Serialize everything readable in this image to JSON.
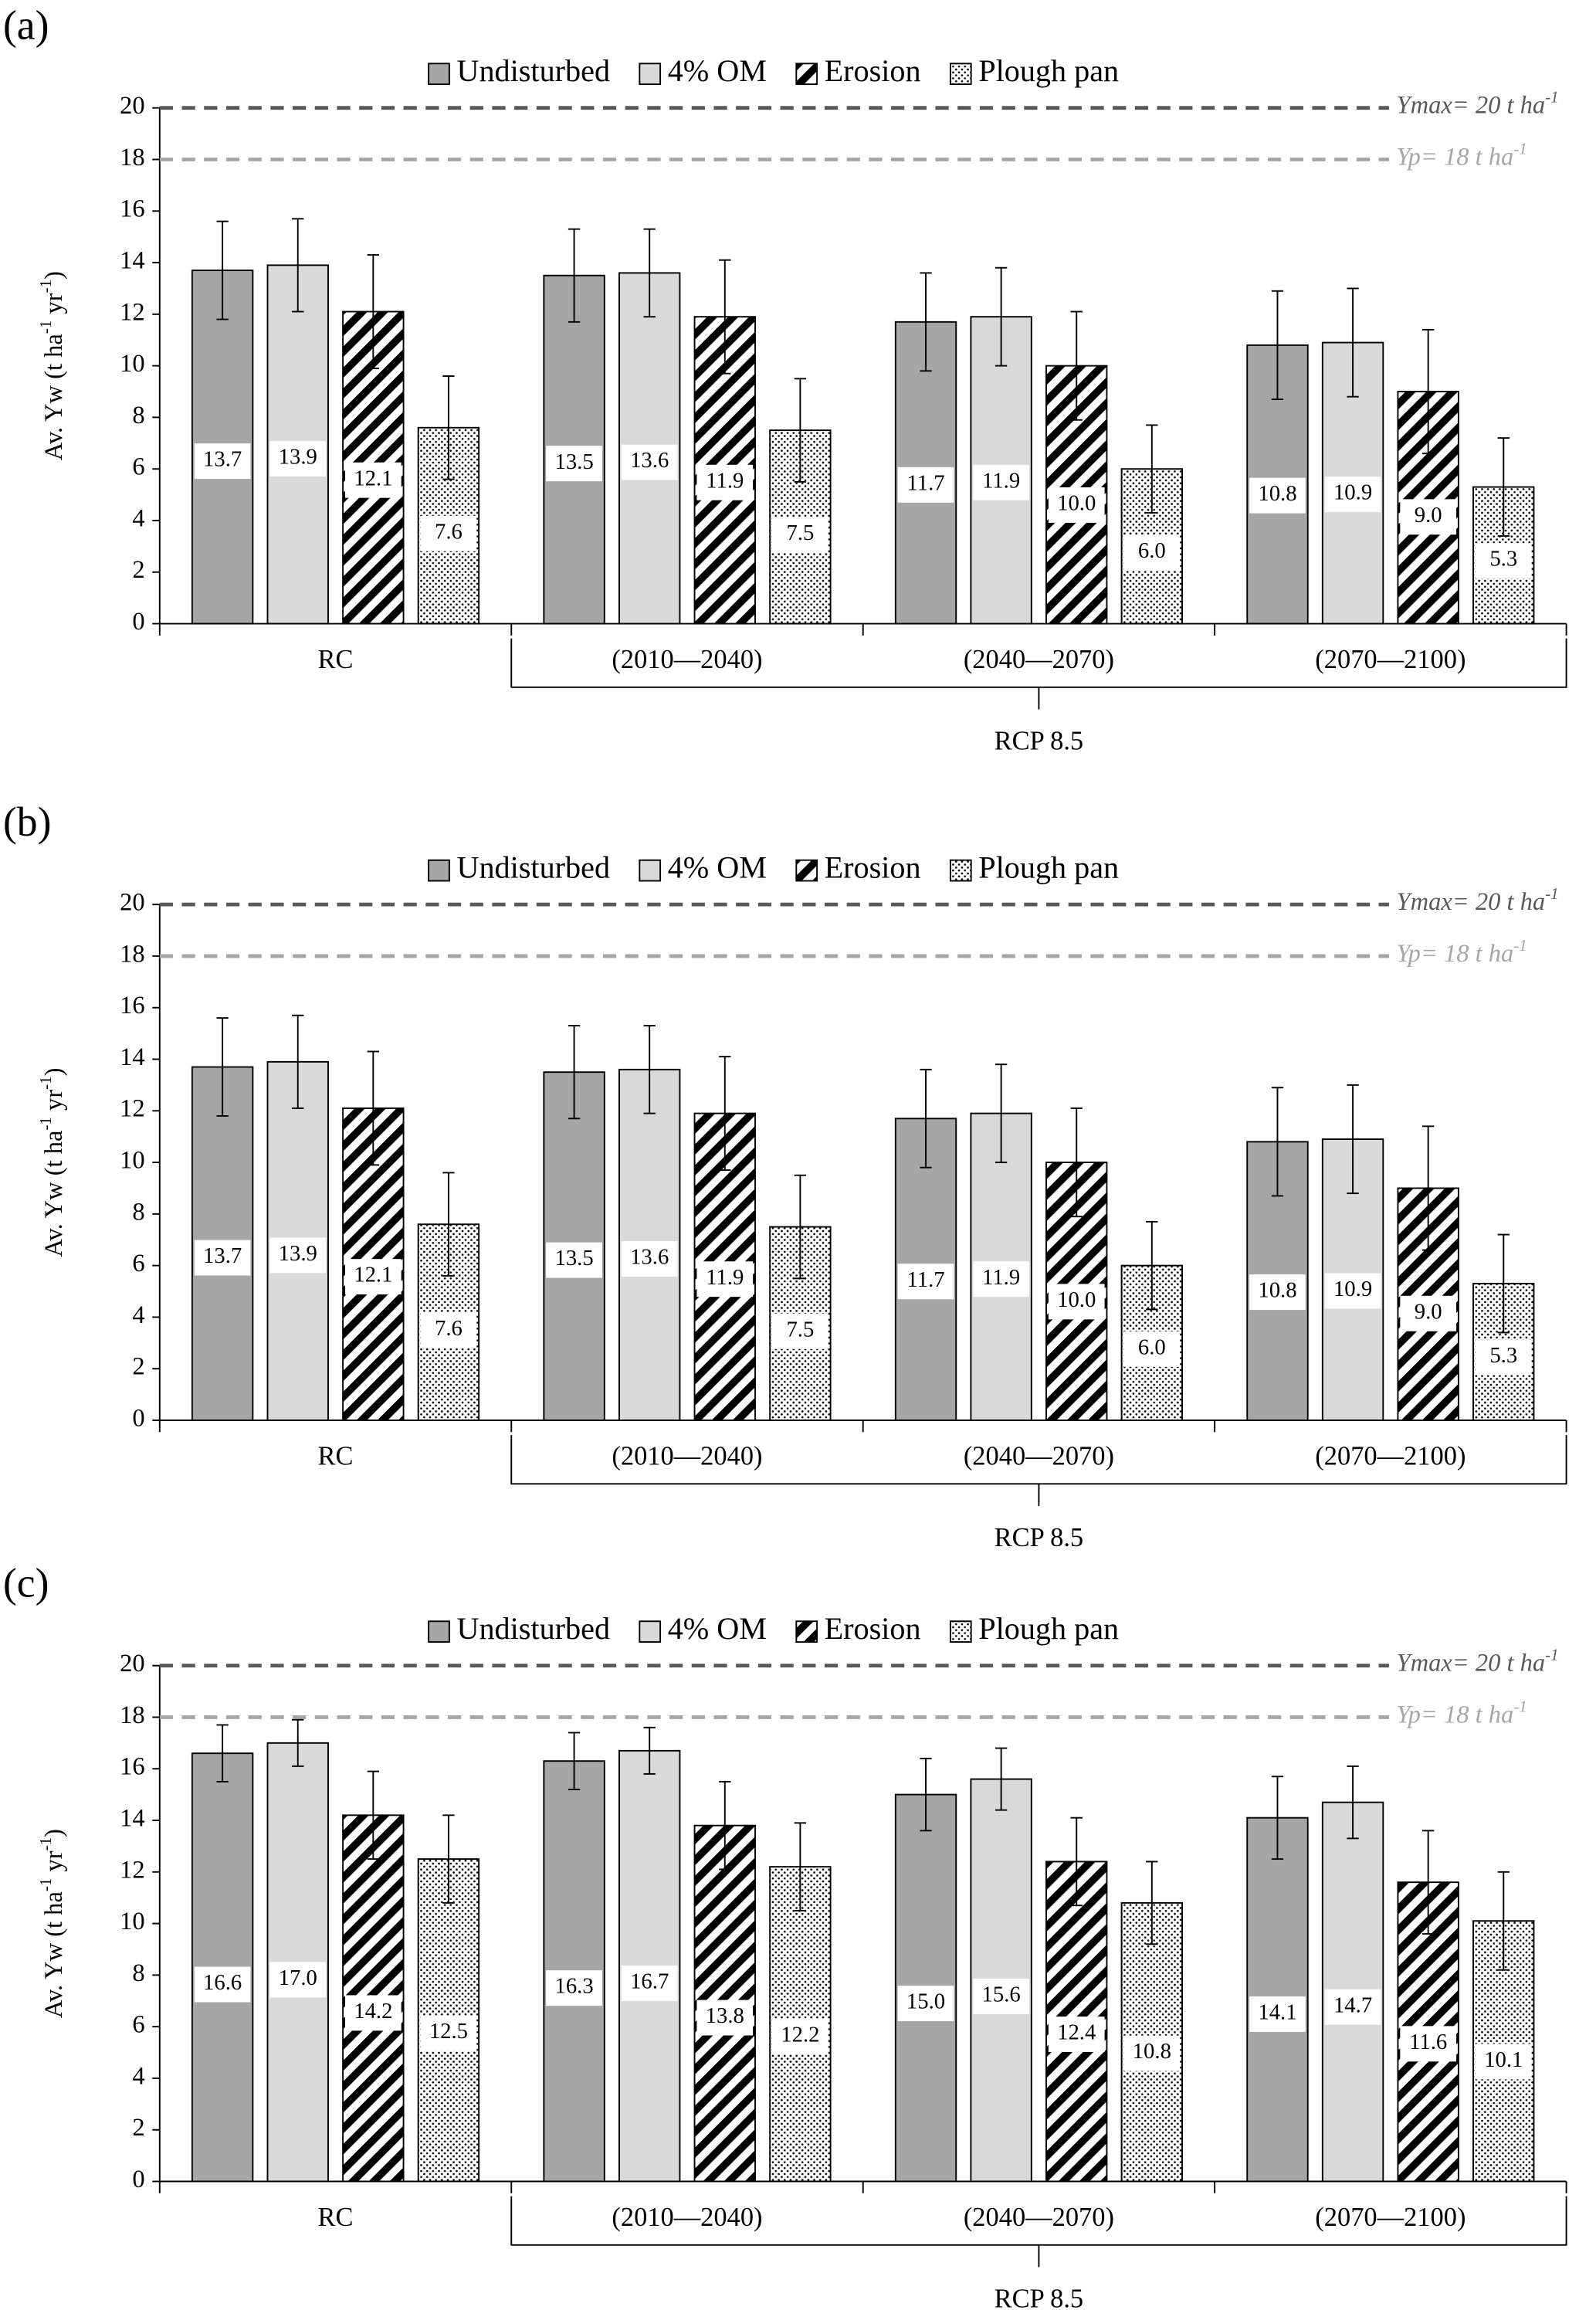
{
  "chart_data": [
    {
      "type": "bar",
      "panel_label": "(a)",
      "categories": [
        "RC",
        "(2010—2040)",
        "(2040—2070)",
        "(2070—2100)"
      ],
      "group_label": "RCP 8.5",
      "ylabel": [
        "Av. Yw (t ha",
        "-1",
        " yr",
        "-1",
        ")"
      ],
      "ylim": [
        0,
        20
      ],
      "yticks": [
        0,
        2,
        4,
        6,
        8,
        10,
        12,
        14,
        16,
        18,
        20
      ],
      "reference_lines": [
        {
          "value": 20,
          "label": "Ymax= 20 t ha",
          "label_sup": "-1",
          "color": "#595959"
        },
        {
          "value": 18,
          "label": "Yp= 18 t ha",
          "label_sup": "-1",
          "color": "#a6a6a6"
        }
      ],
      "series": [
        {
          "name": "Undisturbed",
          "color": "#a6a6a6",
          "pattern": "solid",
          "values": [
            13.7,
            13.5,
            11.7,
            10.8
          ],
          "value_labels": [
            "13.7",
            "13.5",
            "11.7",
            "10.8"
          ],
          "errors": [
            1.9,
            1.8,
            1.9,
            2.1
          ]
        },
        {
          "name": "4% OM",
          "color": "#d9d9d9",
          "pattern": "solid",
          "values": [
            13.9,
            13.6,
            11.9,
            10.9
          ],
          "value_labels": [
            "13.9",
            "13.6",
            "11.9",
            "10.9"
          ],
          "errors": [
            1.8,
            1.7,
            1.9,
            2.1
          ]
        },
        {
          "name": "Erosion",
          "color": "#000000",
          "pattern": "hatch",
          "values": [
            12.1,
            11.9,
            10,
            9
          ],
          "value_labels": [
            "12.1",
            "11.9",
            "10.0",
            "9.0"
          ],
          "errors": [
            2.2,
            2.2,
            2.1,
            2.4
          ]
        },
        {
          "name": "Plough pan",
          "color": "#000000",
          "pattern": "dots",
          "values": [
            7.6,
            7.5,
            6,
            5.3
          ],
          "value_labels": [
            "7.6",
            "7.5",
            "6.0",
            "5.3"
          ],
          "errors": [
            2.0,
            2.0,
            1.7,
            1.9
          ]
        }
      ]
    },
    {
      "type": "bar",
      "panel_label": "(b)",
      "categories": [
        "RC",
        "(2010—2040)",
        "(2040—2070)",
        "(2070—2100)"
      ],
      "group_label": "RCP 8.5",
      "ylabel": [
        "Av. Yw (t ha",
        "-1",
        " yr",
        "-1",
        ")"
      ],
      "ylim": [
        0,
        20
      ],
      "yticks": [
        0,
        2,
        4,
        6,
        8,
        10,
        12,
        14,
        16,
        18,
        20
      ],
      "reference_lines": [
        {
          "value": 20,
          "label": "Ymax= 20 t ha",
          "label_sup": "-1",
          "color": "#595959"
        },
        {
          "value": 18,
          "label": "Yp= 18 t ha",
          "label_sup": "-1",
          "color": "#a6a6a6"
        }
      ],
      "series": [
        {
          "name": "Undisturbed",
          "color": "#a6a6a6",
          "pattern": "solid",
          "values": [
            13.7,
            13.5,
            11.7,
            10.8
          ],
          "value_labels": [
            "13.7",
            "13.5",
            "11.7",
            "10.8"
          ],
          "errors": [
            1.9,
            1.8,
            1.9,
            2.1
          ]
        },
        {
          "name": "4% OM",
          "color": "#d9d9d9",
          "pattern": "solid",
          "values": [
            13.9,
            13.6,
            11.9,
            10.9
          ],
          "value_labels": [
            "13.9",
            "13.6",
            "11.9",
            "10.9"
          ],
          "errors": [
            1.8,
            1.7,
            1.9,
            2.1
          ]
        },
        {
          "name": "Erosion",
          "color": "#000000",
          "pattern": "hatch",
          "values": [
            12.1,
            11.9,
            10,
            9
          ],
          "value_labels": [
            "12.1",
            "11.9",
            "10.0",
            "9.0"
          ],
          "errors": [
            2.2,
            2.2,
            2.1,
            2.4
          ]
        },
        {
          "name": "Plough pan",
          "color": "#000000",
          "pattern": "dots",
          "values": [
            7.6,
            7.5,
            6,
            5.3
          ],
          "value_labels": [
            "7.6",
            "7.5",
            "6.0",
            "5.3"
          ],
          "errors": [
            2.0,
            2.0,
            1.7,
            1.9
          ]
        }
      ]
    },
    {
      "type": "bar",
      "panel_label": "(c)",
      "categories": [
        "RC",
        "(2010—2040)",
        "(2040—2070)",
        "(2070—2100)"
      ],
      "group_label": "RCP 8.5",
      "ylabel": [
        "Av. Yw (t ha",
        "-1",
        " yr",
        "-1",
        ")"
      ],
      "ylim": [
        0,
        20
      ],
      "yticks": [
        0,
        2,
        4,
        6,
        8,
        10,
        12,
        14,
        16,
        18,
        20
      ],
      "reference_lines": [
        {
          "value": 20,
          "label": "Ymax= 20 t ha",
          "label_sup": "-1",
          "color": "#595959"
        },
        {
          "value": 18,
          "label": "Yp= 18 t ha",
          "label_sup": "-1",
          "color": "#a6a6a6"
        }
      ],
      "series": [
        {
          "name": "Undisturbed",
          "color": "#a6a6a6",
          "pattern": "solid",
          "values": [
            16.6,
            16.3,
            15,
            14.1
          ],
          "value_labels": [
            "16.6",
            "16.3",
            "15.0",
            "14.1"
          ],
          "errors": [
            1.1,
            1.1,
            1.4,
            1.6
          ]
        },
        {
          "name": "4% OM",
          "color": "#d9d9d9",
          "pattern": "solid",
          "values": [
            17,
            16.7,
            15.6,
            14.7
          ],
          "value_labels": [
            "17.0",
            "16.7",
            "15.6",
            "14.7"
          ],
          "errors": [
            0.9,
            0.9,
            1.2,
            1.4
          ]
        },
        {
          "name": "Erosion",
          "color": "#000000",
          "pattern": "hatch",
          "values": [
            14.2,
            13.8,
            12.4,
            11.6
          ],
          "value_labels": [
            "14.2",
            "13.8",
            "12.4",
            "11.6"
          ],
          "errors": [
            1.7,
            1.7,
            1.7,
            2.0
          ]
        },
        {
          "name": "Plough pan",
          "color": "#000000",
          "pattern": "dots",
          "values": [
            12.5,
            12.2,
            10.8,
            10.1
          ],
          "value_labels": [
            "12.5",
            "12.2",
            "10.8",
            "10.1"
          ],
          "errors": [
            1.7,
            1.7,
            1.6,
            1.9
          ]
        }
      ]
    }
  ]
}
